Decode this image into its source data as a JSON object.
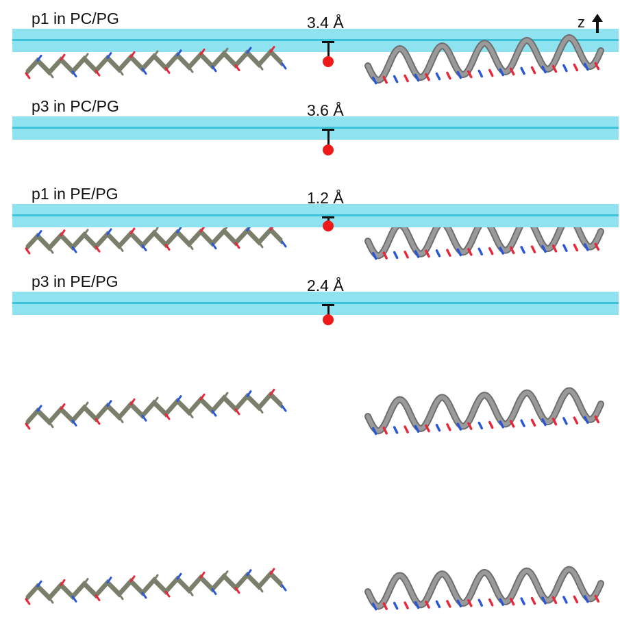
{
  "axis": {
    "label": "z"
  },
  "panels": [
    {
      "label": "p1 in PC/PG",
      "distance": "3.4 Å",
      "depth": 3.4
    },
    {
      "label": "p3 in PC/PG",
      "distance": "3.6 Å",
      "depth": 3.6
    },
    {
      "label": "p1 in PE/PG",
      "distance": "1.2 Å",
      "depth": 1.2
    },
    {
      "label": "p3 in PE/PG",
      "distance": "2.4 Å",
      "depth": 2.4
    }
  ],
  "colors": {
    "membrane": "#8fe3f0",
    "membrane_center": "#3cc4dd",
    "marker_dot": "#ee1a1a",
    "ribbon": "#9a9a9a",
    "carbon": "#7a7f6c",
    "oxygen": "#e8283a",
    "nitrogen": "#2a57d8"
  }
}
